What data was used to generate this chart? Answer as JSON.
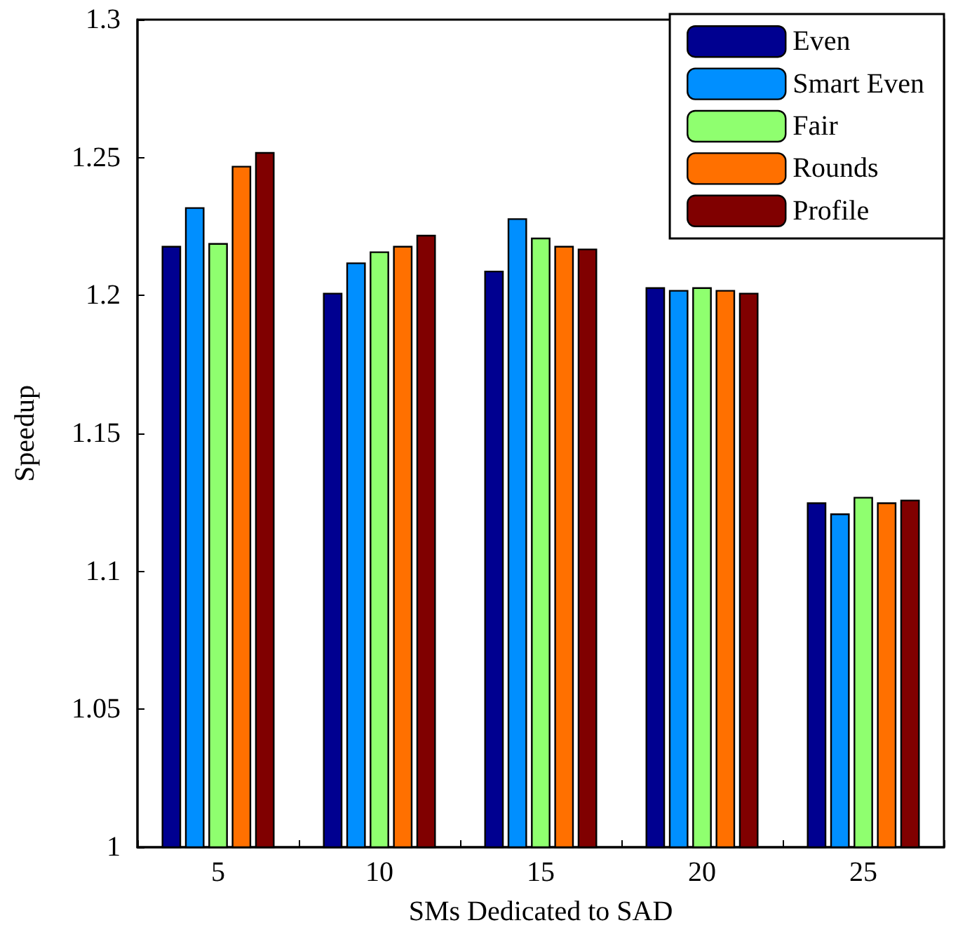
{
  "chart_data": {
    "type": "bar",
    "xlabel": "SMs Dedicated to SAD",
    "ylabel": "Speedup",
    "categories": [
      "5",
      "10",
      "15",
      "20",
      "25"
    ],
    "series": [
      {
        "name": "Even",
        "color": "#000090",
        "values": [
          1.218,
          1.201,
          1.209,
          1.203,
          1.125
        ]
      },
      {
        "name": "Smart Even",
        "color": "#008fff",
        "values": [
          1.232,
          1.212,
          1.228,
          1.202,
          1.121
        ]
      },
      {
        "name": "Fair",
        "color": "#8fff6f",
        "values": [
          1.219,
          1.216,
          1.221,
          1.203,
          1.127
        ]
      },
      {
        "name": "Rounds",
        "color": "#ff7000",
        "values": [
          1.247,
          1.218,
          1.218,
          1.202,
          1.125
        ]
      },
      {
        "name": "Profile",
        "color": "#800000",
        "values": [
          1.252,
          1.222,
          1.217,
          1.201,
          1.126
        ]
      }
    ],
    "ylim": [
      1,
      1.3
    ],
    "yticks": [
      1,
      1.05,
      1.1,
      1.15,
      1.2,
      1.25,
      1.3
    ],
    "grid": false,
    "legend": "top right"
  }
}
